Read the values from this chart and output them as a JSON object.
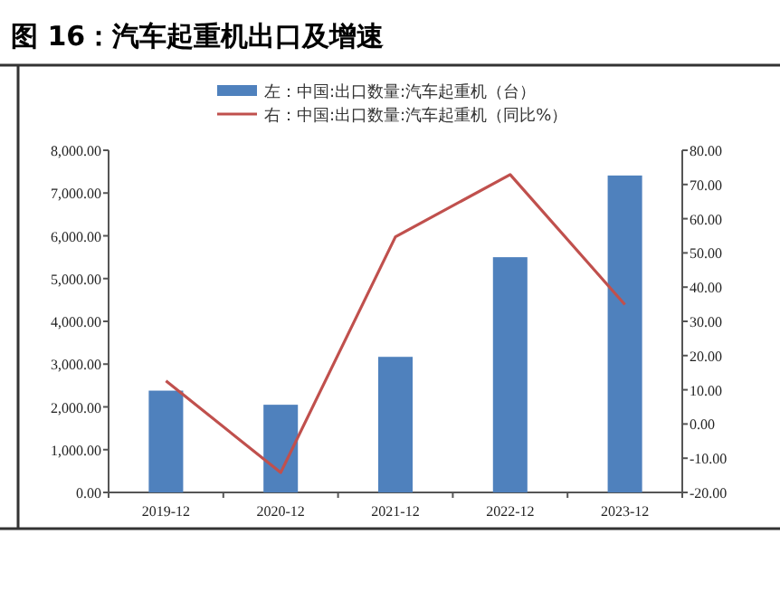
{
  "chart_data": {
    "type": "bar",
    "title": "图 16：汽车起重机出口及增速",
    "categories": [
      "2019-12",
      "2020-12",
      "2021-12",
      "2022-12",
      "2023-12"
    ],
    "series": [
      {
        "name": "左：中国:出口数量:汽车起重机（台）",
        "color": "#4f81bd",
        "values": [
          2380,
          2050,
          3170,
          5500,
          7410
        ]
      },
      {
        "name": "右：中国:出口数量:汽车起重机（同比%）",
        "type": "line",
        "axis": "y2",
        "color": "#c0504d",
        "values": [
          12.6,
          -14.2,
          54.7,
          72.9,
          34.9
        ]
      }
    ],
    "ylim": [
      0,
      8000
    ],
    "yticks": [
      {
        "value": 0,
        "label": "0.00"
      },
      {
        "value": 1000,
        "label": "1,000.00"
      },
      {
        "value": 2000,
        "label": "2,000.00"
      },
      {
        "value": 3000,
        "label": "3,000.00"
      },
      {
        "value": 4000,
        "label": "4,000.00"
      },
      {
        "value": 5000,
        "label": "5,000.00"
      },
      {
        "value": 6000,
        "label": "6,000.00"
      },
      {
        "value": 7000,
        "label": "7,000.00"
      },
      {
        "value": 8000,
        "label": "8,000.00"
      }
    ],
    "y2lim": [
      -20,
      80
    ],
    "y2ticks": [
      {
        "value": -20,
        "label": "-20.00"
      },
      {
        "value": -10,
        "label": "-10.00"
      },
      {
        "value": 0,
        "label": "0.00"
      },
      {
        "value": 10,
        "label": "10.00"
      },
      {
        "value": 20,
        "label": "20.00"
      },
      {
        "value": 30,
        "label": "30.00"
      },
      {
        "value": 40,
        "label": "40.00"
      },
      {
        "value": 50,
        "label": "50.00"
      },
      {
        "value": 60,
        "label": "60.00"
      },
      {
        "value": 70,
        "label": "70.00"
      },
      {
        "value": 80,
        "label": "80.00"
      }
    ],
    "legend": "top",
    "grid": false
  }
}
